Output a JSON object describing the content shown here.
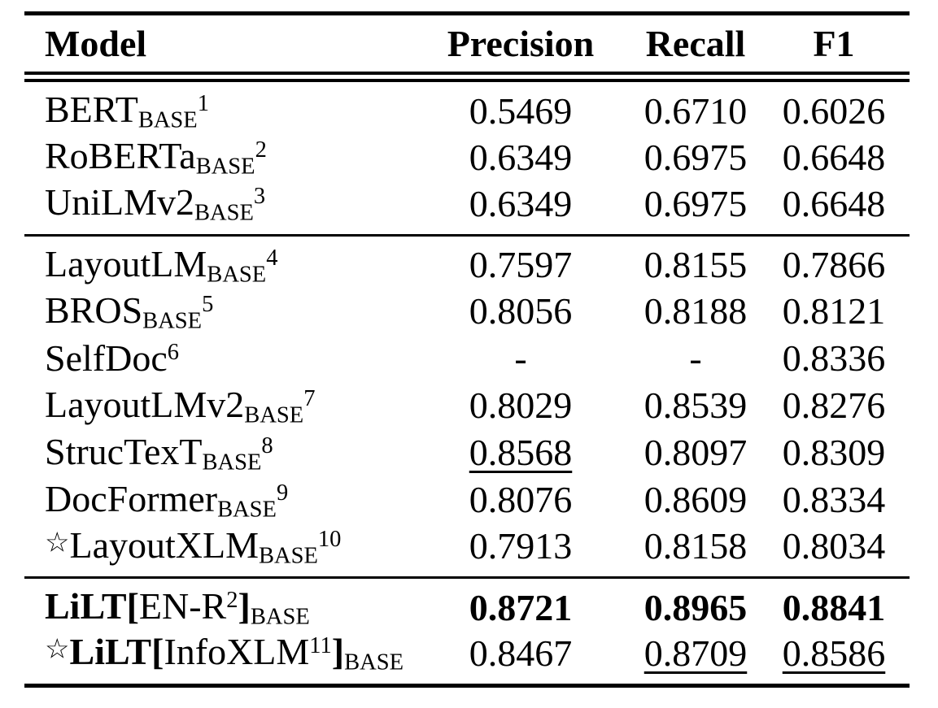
{
  "table": {
    "header": {
      "model": "Model",
      "precision": "Precision",
      "recall": "Recall",
      "f1": "F1"
    },
    "star_glyph": "☆",
    "groups": [
      {
        "rows": [
          {
            "model_tokens": [
              {
                "t": "BERT"
              },
              {
                "t": "BASE",
                "sub": true
              },
              {
                "t": "1",
                "sup": true
              }
            ],
            "cells": [
              {
                "v": "0.5469"
              },
              {
                "v": "0.6710"
              },
              {
                "v": "0.6026"
              }
            ]
          },
          {
            "model_tokens": [
              {
                "t": "RoBERTa"
              },
              {
                "t": "BASE",
                "sub": true
              },
              {
                "t": "2",
                "sup": true
              }
            ],
            "cells": [
              {
                "v": "0.6349"
              },
              {
                "v": "0.6975"
              },
              {
                "v": "0.6648"
              }
            ]
          },
          {
            "model_tokens": [
              {
                "t": "UniLMv2"
              },
              {
                "t": "BASE",
                "sub": true
              },
              {
                "t": "3",
                "sup": true
              }
            ],
            "cells": [
              {
                "v": "0.6349"
              },
              {
                "v": "0.6975"
              },
              {
                "v": "0.6648"
              }
            ]
          }
        ]
      },
      {
        "rows": [
          {
            "model_tokens": [
              {
                "t": "LayoutLM"
              },
              {
                "t": "BASE",
                "sub": true
              },
              {
                "t": "4",
                "sup": true
              }
            ],
            "cells": [
              {
                "v": "0.7597"
              },
              {
                "v": "0.8155"
              },
              {
                "v": "0.7866"
              }
            ]
          },
          {
            "model_tokens": [
              {
                "t": "BROS"
              },
              {
                "t": "BASE",
                "sub": true
              },
              {
                "t": "5",
                "sup": true
              }
            ],
            "cells": [
              {
                "v": "0.8056"
              },
              {
                "v": "0.8188"
              },
              {
                "v": "0.8121"
              }
            ]
          },
          {
            "model_tokens": [
              {
                "t": "SelfDoc"
              },
              {
                "t": "6",
                "sup": true
              }
            ],
            "cells": [
              {
                "v": "-"
              },
              {
                "v": "-"
              },
              {
                "v": "0.8336"
              }
            ]
          },
          {
            "model_tokens": [
              {
                "t": "LayoutLMv2"
              },
              {
                "t": "BASE",
                "sub": true
              },
              {
                "t": "7",
                "sup": true
              }
            ],
            "cells": [
              {
                "v": "0.8029"
              },
              {
                "v": "0.8539"
              },
              {
                "v": "0.8276"
              }
            ]
          },
          {
            "model_tokens": [
              {
                "t": "StrucTexT"
              },
              {
                "t": "BASE",
                "sub": true
              },
              {
                "t": "8",
                "sup": true
              }
            ],
            "cells": [
              {
                "v": "0.8568",
                "u": true
              },
              {
                "v": "0.8097"
              },
              {
                "v": "0.8309"
              }
            ]
          },
          {
            "model_tokens": [
              {
                "t": "DocFormer"
              },
              {
                "t": "BASE",
                "sub": true
              },
              {
                "t": "9",
                "sup": true
              }
            ],
            "cells": [
              {
                "v": "0.8076"
              },
              {
                "v": "0.8609"
              },
              {
                "v": "0.8334"
              }
            ]
          },
          {
            "model_tokens": [
              {
                "t": "star",
                "star": true
              },
              {
                "t": "LayoutXLM"
              },
              {
                "t": "BASE",
                "sub": true
              },
              {
                "t": "10",
                "sup": true
              }
            ],
            "cells": [
              {
                "v": "0.7913"
              },
              {
                "v": "0.8158"
              },
              {
                "v": "0.8034"
              }
            ]
          }
        ]
      },
      {
        "rows": [
          {
            "model_tokens": [
              {
                "t": "LiLT[",
                "b": true
              },
              {
                "t": "EN-R"
              },
              {
                "t": "2",
                "sup": true
              },
              {
                "t": "]",
                "b": true
              },
              {
                "t": "BASE",
                "sub": true
              }
            ],
            "cells": [
              {
                "v": "0.8721",
                "b": true
              },
              {
                "v": "0.8965",
                "b": true
              },
              {
                "v": "0.8841",
                "b": true
              }
            ]
          },
          {
            "model_tokens": [
              {
                "t": "star",
                "star": true
              },
              {
                "t": "LiLT[",
                "b": true
              },
              {
                "t": "InfoXLM"
              },
              {
                "t": "11",
                "sup": true
              },
              {
                "t": "]",
                "b": true
              },
              {
                "t": "BASE",
                "sub": true
              }
            ],
            "cells": [
              {
                "v": "0.8467"
              },
              {
                "v": "0.8709",
                "u": true
              },
              {
                "v": "0.8586",
                "u": true
              }
            ]
          }
        ]
      }
    ]
  }
}
